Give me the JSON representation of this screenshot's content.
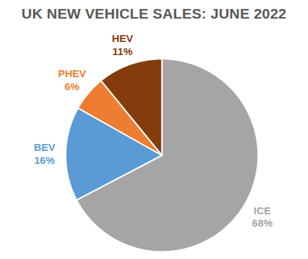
{
  "chart_data": {
    "type": "pie",
    "title": "UK NEW VEHICLE SALES: JUNE 2022",
    "categories": [
      "ICE",
      "BEV",
      "PHEV",
      "HEV"
    ],
    "values": [
      68,
      16,
      6,
      11
    ],
    "value_labels": [
      "68%",
      "16%",
      "6%",
      "11%"
    ],
    "colors": [
      "#a5a5a5",
      "#5b9bd5",
      "#ed7d31",
      "#843c0c"
    ],
    "data_labels": true
  }
}
